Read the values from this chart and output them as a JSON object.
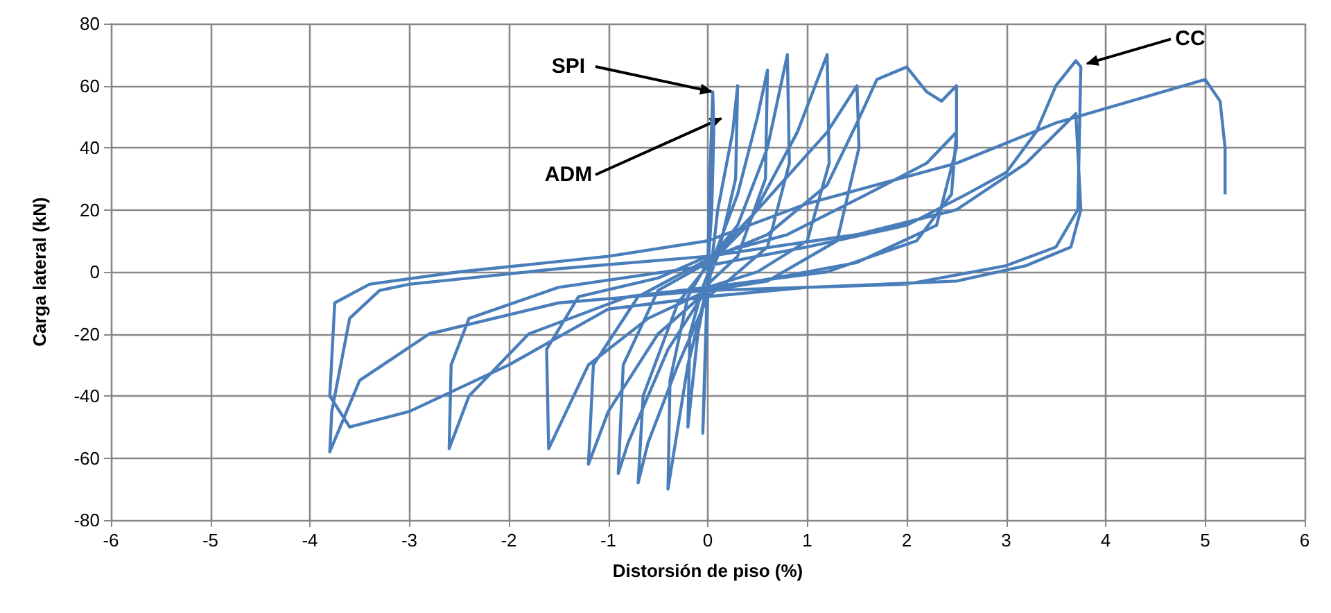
{
  "chart_data": {
    "type": "line",
    "xlabel": "Distorsión de piso (%)",
    "ylabel": "Carga lateral (kN)",
    "xlim": [
      -6,
      6
    ],
    "xticks": [
      -6,
      -5,
      -4,
      -3,
      -2,
      -1,
      0,
      1,
      2,
      3,
      4,
      5,
      6
    ],
    "ylim": [
      -80,
      80
    ],
    "yticks": [
      -80,
      -60,
      -40,
      -20,
      0,
      20,
      40,
      60,
      80
    ],
    "grid": true,
    "marker": "none",
    "line_style": "solid",
    "series": [
      {
        "color": "#4a7ebb",
        "x": [
          0,
          0.02,
          0.05,
          0.06,
          0.04,
          0,
          -0.03,
          -0.05,
          0,
          0.1,
          0.25,
          0.3,
          0.28,
          0.1,
          0,
          -0.1,
          -0.2,
          -0.18,
          -0.05,
          0.1,
          0.3,
          0.5,
          0.6,
          0.58,
          0.3,
          0,
          -0.2,
          -0.4,
          -0.38,
          -0.2,
          0,
          0.3,
          0.6,
          0.8,
          0.82,
          0.6,
          0.2,
          0,
          -0.3,
          -0.6,
          -0.7,
          -0.65,
          -0.3,
          0,
          0.4,
          0.9,
          1.2,
          1.22,
          1.0,
          0.5,
          0,
          -0.4,
          -0.8,
          -0.9,
          -0.85,
          -0.5,
          0,
          0.5,
          1.2,
          1.5,
          1.52,
          1.3,
          0.6,
          0,
          -0.5,
          -1.0,
          -1.2,
          -1.15,
          -0.7,
          0,
          0.6,
          1.2,
          1.5,
          1.7,
          2.0,
          2.2,
          2.35,
          2.5,
          2.5,
          2.3,
          1.5,
          0.5,
          0,
          -0.6,
          -1.2,
          -1.6,
          -1.62,
          -1.3,
          -0.5,
          0,
          0.8,
          1.6,
          2.2,
          2.5,
          2.45,
          2.1,
          1.2,
          0,
          -0.8,
          -1.8,
          -2.4,
          -2.6,
          -2.58,
          -2.4,
          -1.5,
          0,
          1.0,
          2.0,
          2.6,
          3.0,
          3.3,
          3.5,
          3.7,
          3.75,
          3.72,
          3.5,
          3.0,
          2.0,
          0,
          -1.5,
          -2.8,
          -3.5,
          -3.8,
          -3.78,
          -3.6,
          -3.3,
          -3.0,
          -1.5,
          0,
          1.5,
          2.5,
          3.2,
          3.7,
          3.75,
          3.65,
          3.2,
          2.5,
          1.0,
          0,
          -1.0,
          -2.0,
          -3.0,
          -3.6,
          -3.8,
          -3.75,
          -3.4,
          -2.5,
          -1.0,
          0,
          1.0,
          2.5,
          3.5,
          5.0,
          5.15,
          5.2,
          5.2
        ],
        "values": [
          0,
          30,
          58,
          45,
          20,
          0,
          -30,
          -52,
          -8,
          20,
          45,
          60,
          30,
          5,
          -3,
          -20,
          -50,
          -20,
          -5,
          8,
          25,
          50,
          65,
          30,
          5,
          -4,
          -30,
          -70,
          -35,
          -8,
          3,
          15,
          40,
          70,
          35,
          8,
          -3,
          -8,
          -30,
          -55,
          -68,
          -40,
          -10,
          2,
          15,
          45,
          70,
          35,
          10,
          0,
          -5,
          -25,
          -55,
          -65,
          -30,
          -6,
          3,
          20,
          45,
          60,
          40,
          10,
          -3,
          -6,
          -20,
          -45,
          -62,
          -30,
          -8,
          4,
          12,
          28,
          48,
          62,
          66,
          58,
          55,
          60,
          40,
          15,
          3,
          -3,
          -6,
          -15,
          -30,
          -57,
          -25,
          -8,
          -2,
          5,
          12,
          25,
          35,
          45,
          25,
          10,
          0,
          -5,
          -8,
          -20,
          -40,
          -57,
          -30,
          -15,
          -5,
          2,
          8,
          15,
          25,
          32,
          45,
          60,
          68,
          66,
          20,
          8,
          2,
          -4,
          -6,
          -10,
          -20,
          -35,
          -58,
          -45,
          -15,
          -6,
          -4,
          1,
          5,
          12,
          20,
          35,
          51,
          20,
          8,
          2,
          -3,
          -5,
          -8,
          -12,
          -30,
          -45,
          -50,
          -40,
          -10,
          -4,
          0,
          5,
          10,
          22,
          35,
          48,
          62,
          55,
          40,
          25
        ]
      }
    ],
    "annotations": [
      {
        "text": "SPI",
        "x": 0.05,
        "y": 58
      },
      "ADM",
      {
        "text": "CC",
        "x": 3.8,
        "y": 67
      }
    ]
  }
}
